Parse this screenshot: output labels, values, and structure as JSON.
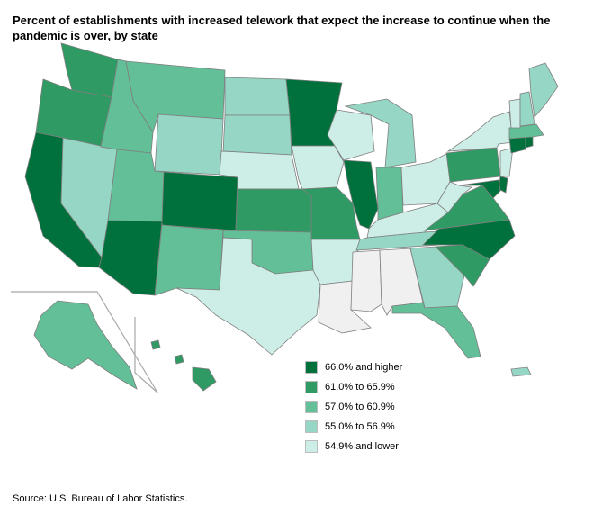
{
  "title": "Percent of establishments with increased telework that expect the increase to continue when the pandemic is over, by state",
  "source": "Source: U.S. Bureau of Labor Statistics.",
  "colors": {
    "c5": "#00703c",
    "c4": "#2f9a63",
    "c3": "#62bf98",
    "c2": "#96d6c4",
    "c1": "#cdeee6",
    "nodata": "#f0f0f0",
    "inset_border": "#a8a8a8"
  },
  "legend": [
    {
      "label": "66.0% and higher",
      "color_key": "c5"
    },
    {
      "label": "61.0% to 65.9%",
      "color_key": "c4"
    },
    {
      "label": "57.0% to 60.9%",
      "color_key": "c3"
    },
    {
      "label": "55.0% to 56.9%",
      "color_key": "c2"
    },
    {
      "label": "54.9% and lower",
      "color_key": "c1"
    }
  ],
  "states": {
    "WA": "c4",
    "OR": "c4",
    "CA": "c5",
    "NV": "c2",
    "ID": "c3",
    "MT": "c3",
    "WY": "c2",
    "UT": "c3",
    "AZ": "c5",
    "CO": "c5",
    "NM": "c3",
    "ND": "c2",
    "SD": "c2",
    "NE": "c1",
    "KS": "c4",
    "OK": "c3",
    "TX": "c1",
    "MN": "c5",
    "IA": "c1",
    "MO": "c4",
    "AR": "c1",
    "LA": "nodata",
    "WI": "c1",
    "IL": "c5",
    "MS": "nodata",
    "MI": "c2",
    "IN": "c3",
    "KY": "c1",
    "TN": "c2",
    "AL": "nodata",
    "OH": "c1",
    "GA": "c2",
    "FL": "c3",
    "SC": "c4",
    "NC": "c5",
    "VA": "c4",
    "WV": "c1",
    "PA": "c4",
    "NY": "c1",
    "NJ": "c1",
    "DE": "c5",
    "MD": "c5",
    "CT": "c5",
    "RI": "c5",
    "MA": "c3",
    "VT": "c1",
    "NH": "c2",
    "ME": "c2",
    "AK": "c3",
    "HI": "c4",
    "PR": "c2"
  }
}
